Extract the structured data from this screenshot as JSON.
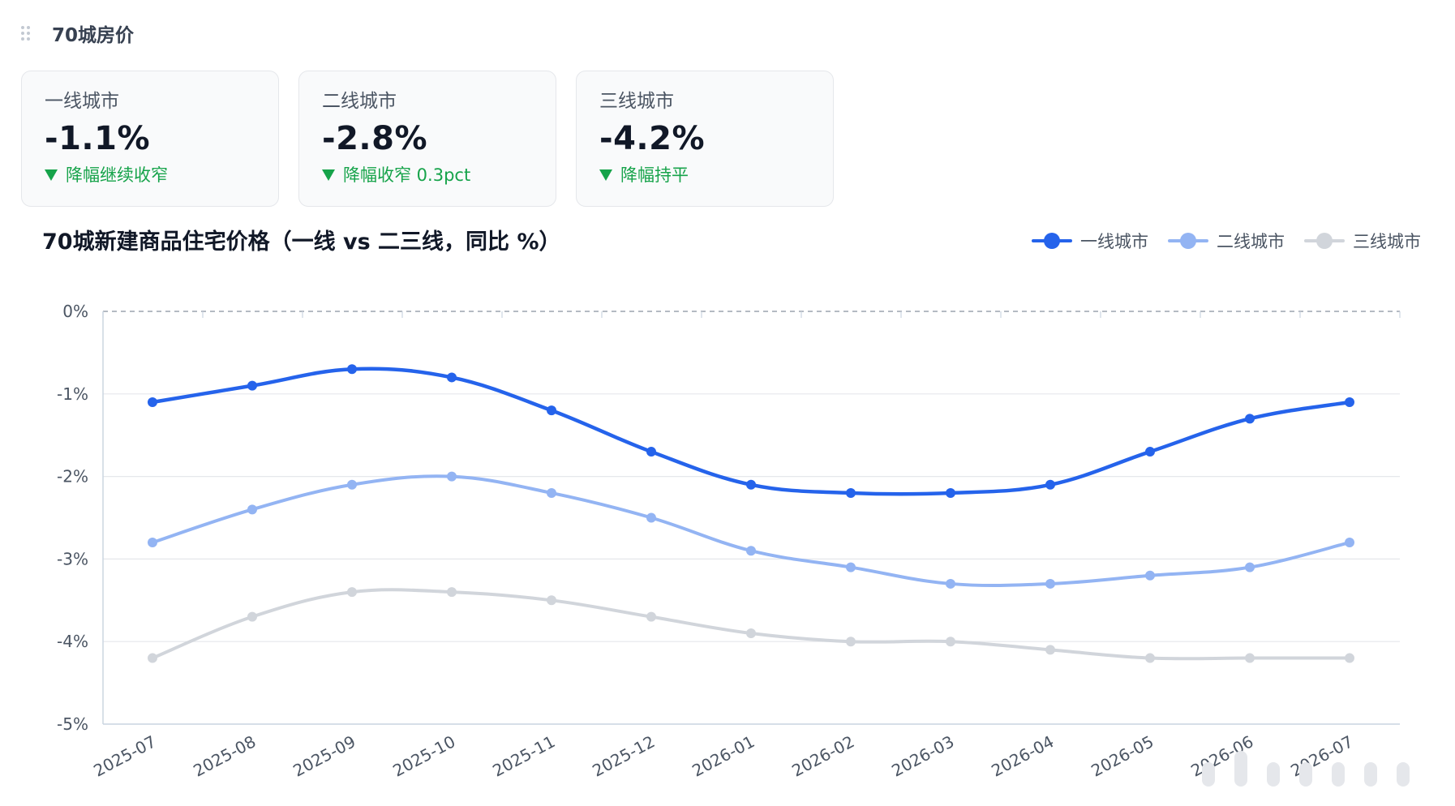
{
  "section": {
    "title": "70城房价"
  },
  "cards": [
    {
      "label": "一线城市",
      "value": "-1.1%",
      "note": "降幅继续收窄"
    },
    {
      "label": "二线城市",
      "value": "-2.8%",
      "note": "降幅收窄 0.3pct"
    },
    {
      "label": "三线城市",
      "value": "-4.2%",
      "note": "降幅持平"
    }
  ],
  "colors": {
    "tier1": "#2563eb",
    "tier2": "#93b4f3",
    "tier3": "#d1d5db",
    "positive": "#16a34a"
  },
  "chart_data": {
    "type": "line",
    "title": "70城新建商品住宅价格（一线 vs 二三线，同比 %）",
    "xlabel": "",
    "ylabel": "",
    "x": [
      "2025-07",
      "2025-08",
      "2025-09",
      "2025-10",
      "2025-11",
      "2025-12",
      "2026-01",
      "2026-02",
      "2026-03",
      "2026-04",
      "2026-05",
      "2026-06",
      "2026-07"
    ],
    "ylim": [
      -5,
      0
    ],
    "yticks": [
      0,
      -1,
      -2,
      -3,
      -4,
      -5
    ],
    "ytick_labels": [
      "0%",
      "-1%",
      "-2%",
      "-3%",
      "-4%",
      "-5%"
    ],
    "smooth": true,
    "legend_position": "top-right",
    "series": [
      {
        "name": "一线城市",
        "values": [
          -1.1,
          -0.9,
          -0.7,
          -0.8,
          -1.2,
          -1.7,
          -2.1,
          -2.2,
          -2.2,
          -2.1,
          -1.7,
          -1.3,
          -1.1
        ]
      },
      {
        "name": "二线城市",
        "values": [
          -2.8,
          -2.4,
          -2.1,
          -2.0,
          -2.2,
          -2.5,
          -2.9,
          -3.1,
          -3.3,
          -3.3,
          -3.2,
          -3.1,
          -2.8
        ]
      },
      {
        "name": "三线城市",
        "values": [
          -4.2,
          -3.7,
          -3.4,
          -3.4,
          -3.5,
          -3.7,
          -3.9,
          -4.0,
          -4.0,
          -4.1,
          -4.2,
          -4.2,
          -4.2
        ]
      }
    ]
  }
}
